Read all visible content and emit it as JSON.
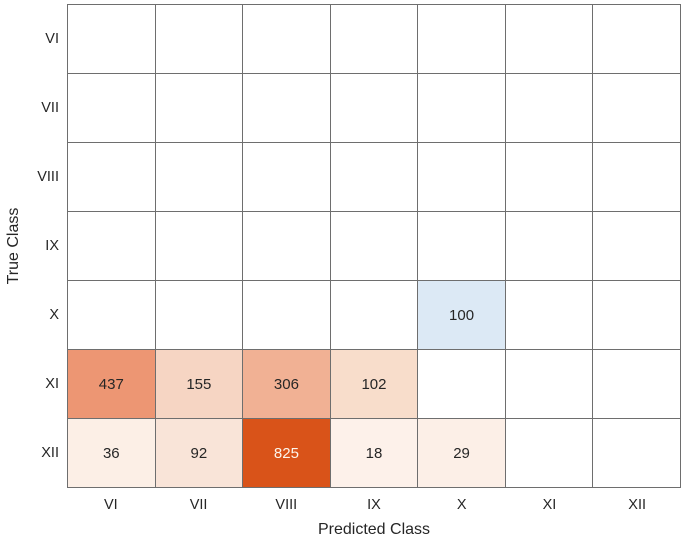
{
  "figure": {
    "background": "#ffffff",
    "grid_line_color": "#6e6e6e",
    "text_color": "#262626"
  },
  "axes": {
    "x_label": "Predicted Class",
    "y_label": "True Class"
  },
  "chart_data": {
    "type": "heatmap",
    "subtype": "confusion-matrix",
    "title": "",
    "xlabel": "Predicted Class",
    "ylabel": "True Class",
    "rows": [
      "VI",
      "VII",
      "VIII",
      "IX",
      "X",
      "XI",
      "XII"
    ],
    "cols": [
      "VI",
      "VII",
      "VIII",
      "IX",
      "X",
      "XI",
      "XII"
    ],
    "empty_bg": "#ffffff",
    "text_color": "#262626",
    "diagonal_accent": "#0072bd",
    "offdiagonal_accent": "#d95319",
    "cells": [
      {
        "row": "X",
        "col": "X",
        "value": 100,
        "bg": "#dce9f5",
        "fg": "#262626"
      },
      {
        "row": "XI",
        "col": "VI",
        "value": 437,
        "bg": "#ed9673",
        "fg": "#262626"
      },
      {
        "row": "XI",
        "col": "VII",
        "value": 155,
        "bg": "#f6d5c3",
        "fg": "#262626"
      },
      {
        "row": "XI",
        "col": "VIII",
        "value": 306,
        "bg": "#f1b194",
        "fg": "#262626"
      },
      {
        "row": "XI",
        "col": "IX",
        "value": 102,
        "bg": "#f8ddcb",
        "fg": "#262626"
      },
      {
        "row": "XII",
        "col": "VI",
        "value": 36,
        "bg": "#fcefe6",
        "fg": "#262626"
      },
      {
        "row": "XII",
        "col": "VII",
        "value": 92,
        "bg": "#f9e4d8",
        "fg": "#262626"
      },
      {
        "row": "XII",
        "col": "VIII",
        "value": 825,
        "bg": "#d95319",
        "fg": "#fdf6ec"
      },
      {
        "row": "XII",
        "col": "IX",
        "value": 18,
        "bg": "#fdf1ea",
        "fg": "#262626"
      },
      {
        "row": "XII",
        "col": "X",
        "value": 29,
        "bg": "#fcefe7",
        "fg": "#262626"
      }
    ]
  }
}
